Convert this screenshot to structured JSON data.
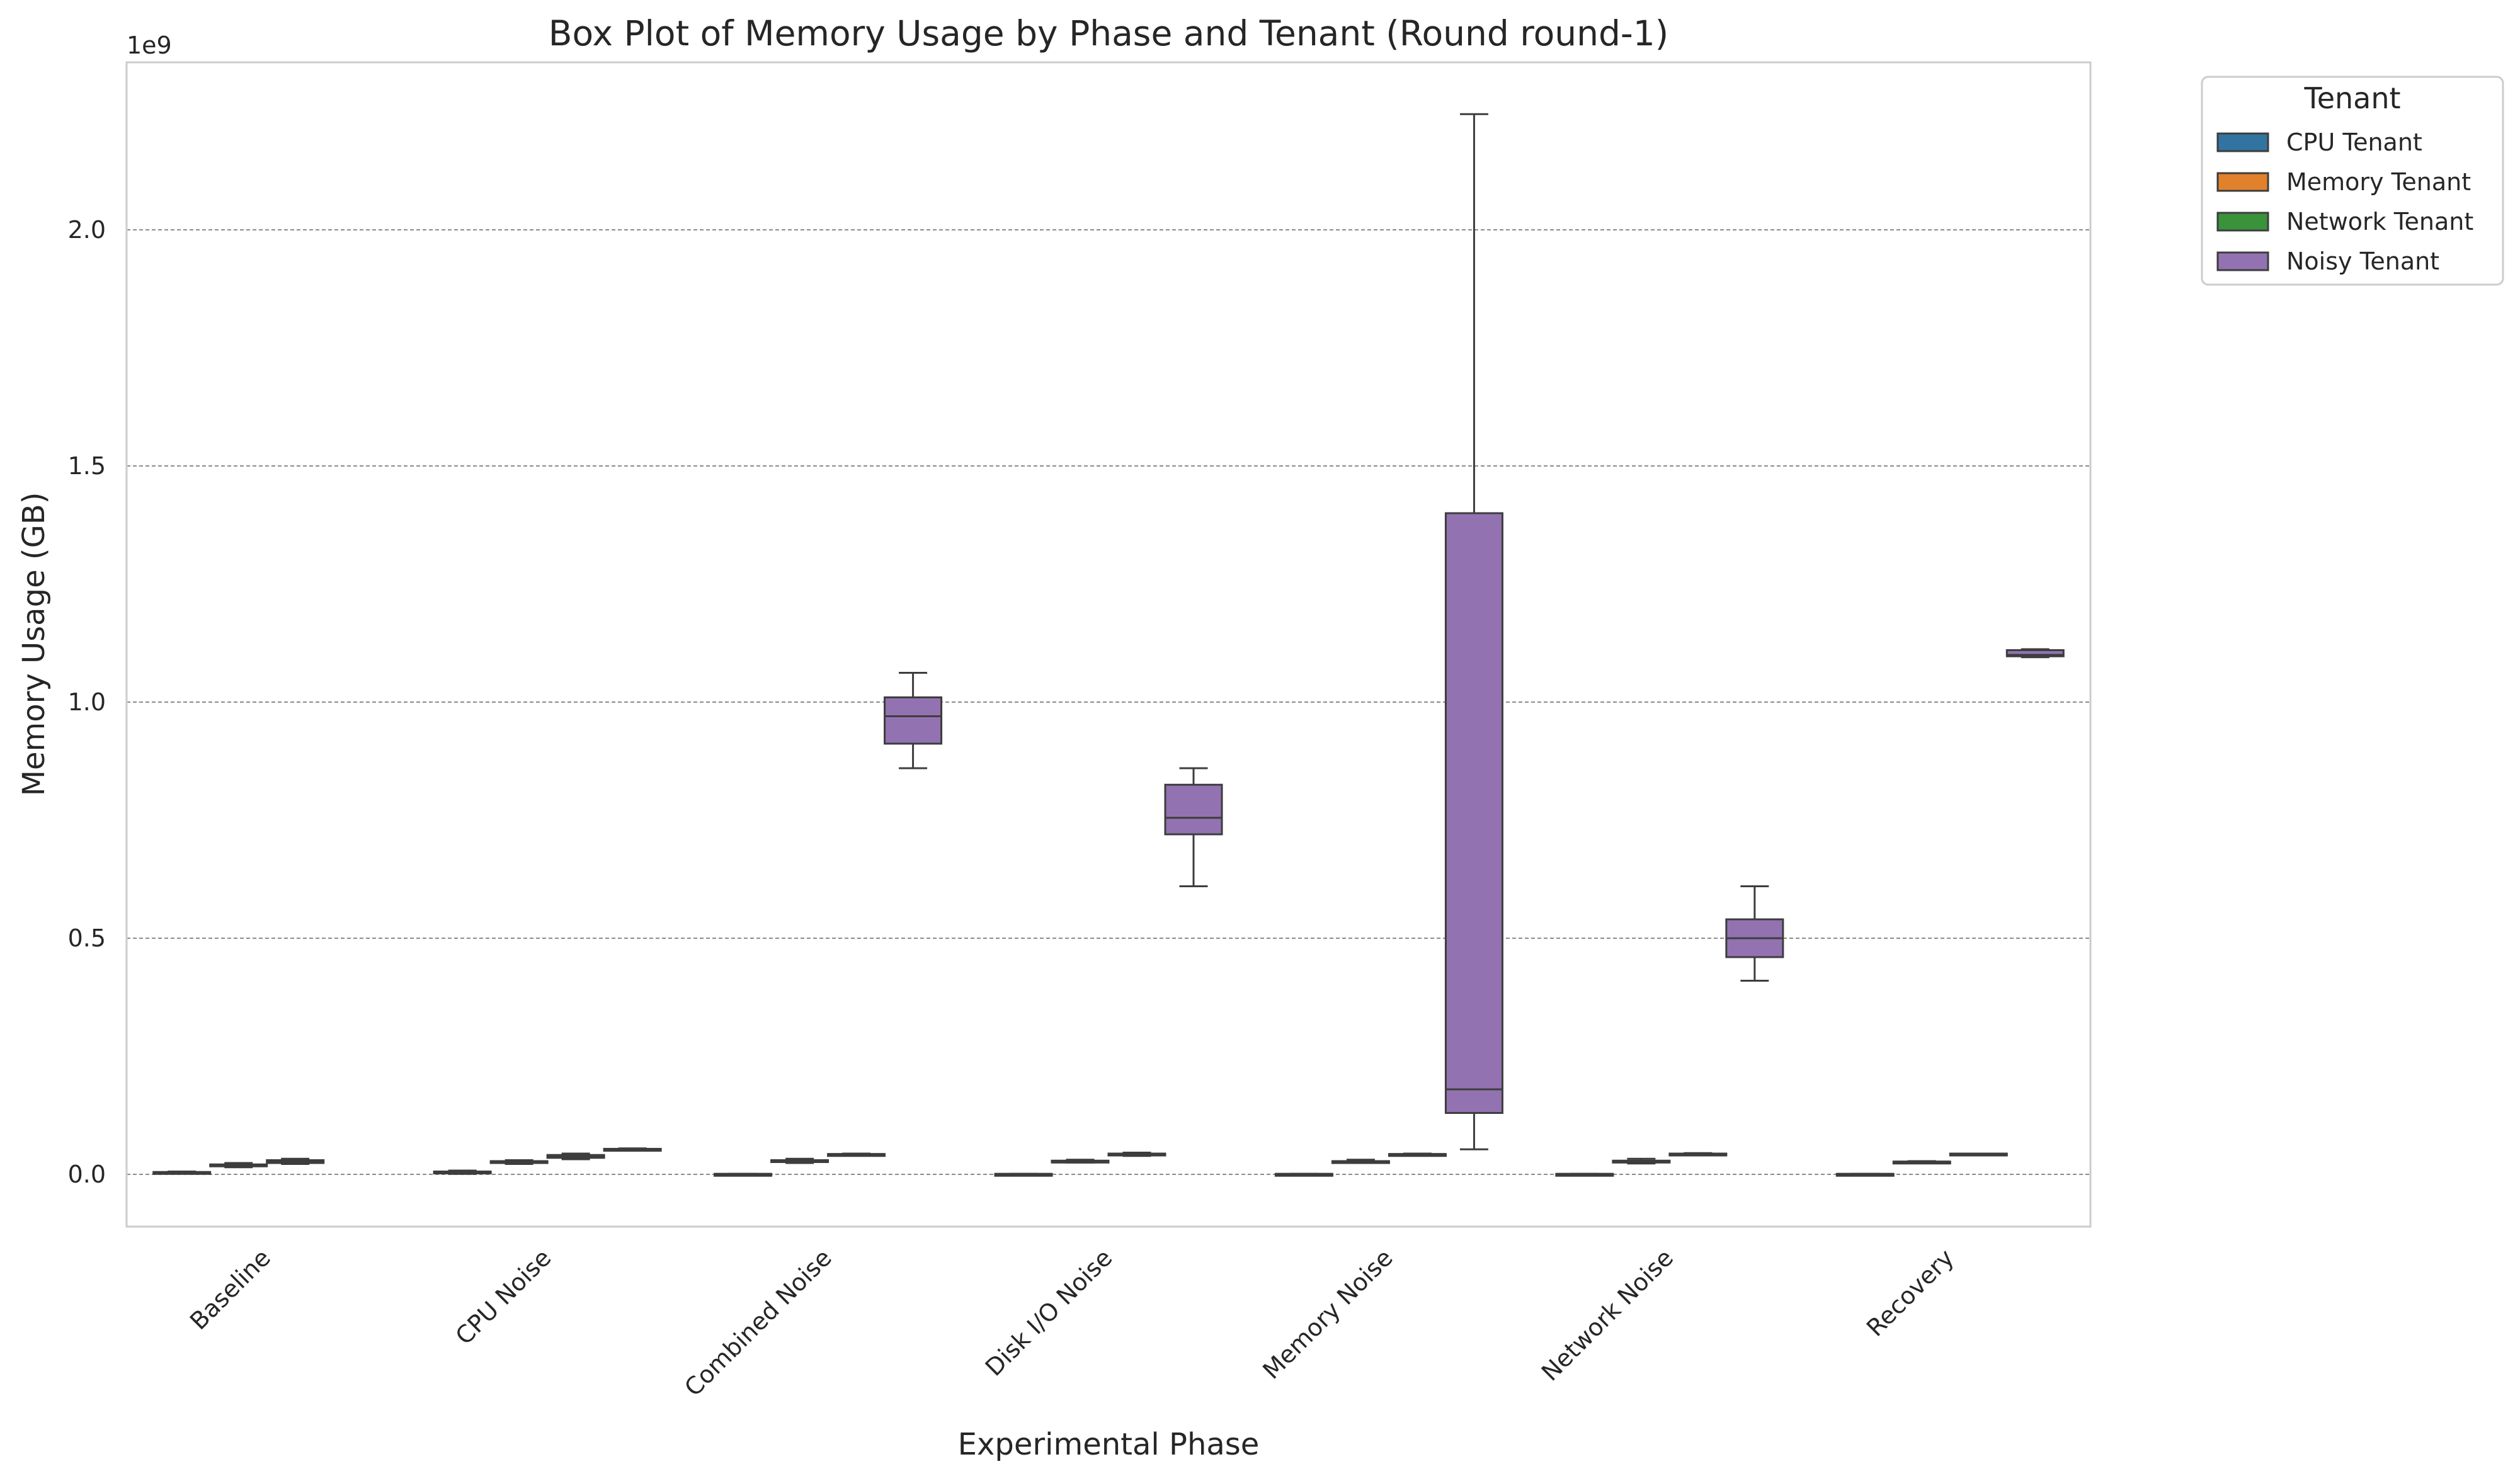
{
  "chart_data": {
    "type": "box",
    "title": "Box Plot of Memory Usage by Phase and Tenant (Round round-1)",
    "xlabel": "Experimental Phase",
    "ylabel": "Memory Usage (GB)",
    "y_offset_label": "1e9",
    "ylim": [
      -0.11,
      2.37
    ],
    "yticks": [
      0.0,
      0.5,
      1.0,
      1.5,
      2.0
    ],
    "ytick_labels": [
      "0.0",
      "0.5",
      "1.0",
      "1.5",
      "2.0"
    ],
    "grid": "horizontal dashed",
    "legend_title": "Tenant",
    "legend_position": "outside top-right",
    "categories": [
      "Baseline",
      "CPU Noise",
      "Combined Noise",
      "Disk I/O Noise",
      "Memory Noise",
      "Network Noise",
      "Recovery"
    ],
    "series": [
      {
        "name": "CPU Tenant",
        "color": "#3274a1",
        "boxes": [
          {
            "whislo": 0.002,
            "q1": 0.003,
            "med": 0.004,
            "q3": 0.005,
            "whishi": 0.006
          },
          {
            "whislo": 0.001,
            "q1": 0.002,
            "med": 0.004,
            "q3": 0.006,
            "whishi": 0.008
          },
          {
            "whislo": 0.001,
            "q1": 0.001,
            "med": 0.001,
            "q3": 0.001,
            "whishi": 0.001
          },
          {
            "whislo": 0.001,
            "q1": 0.001,
            "med": 0.001,
            "q3": 0.001,
            "whishi": 0.001
          },
          {
            "whislo": 0.001,
            "q1": 0.001,
            "med": 0.001,
            "q3": 0.001,
            "whishi": 0.001
          },
          {
            "whislo": 0.001,
            "q1": 0.001,
            "med": 0.001,
            "q3": 0.001,
            "whishi": 0.001
          },
          {
            "whislo": 0.001,
            "q1": 0.001,
            "med": 0.001,
            "q3": 0.001,
            "whishi": 0.001
          }
        ]
      },
      {
        "name": "Memory Tenant",
        "color": "#e1812c",
        "boxes": [
          {
            "whislo": 0.015,
            "q1": 0.017,
            "med": 0.019,
            "q3": 0.021,
            "whishi": 0.024
          },
          {
            "whislo": 0.022,
            "q1": 0.024,
            "med": 0.026,
            "q3": 0.028,
            "whishi": 0.03
          },
          {
            "whislo": 0.024,
            "q1": 0.026,
            "med": 0.028,
            "q3": 0.03,
            "whishi": 0.033
          },
          {
            "whislo": 0.025,
            "q1": 0.026,
            "med": 0.028,
            "q3": 0.029,
            "whishi": 0.031
          },
          {
            "whislo": 0.024,
            "q1": 0.026,
            "med": 0.027,
            "q3": 0.028,
            "whishi": 0.031
          },
          {
            "whislo": 0.023,
            "q1": 0.025,
            "med": 0.027,
            "q3": 0.029,
            "whishi": 0.033
          },
          {
            "whislo": 0.025,
            "q1": 0.026,
            "med": 0.027,
            "q3": 0.027,
            "whishi": 0.028
          }
        ]
      },
      {
        "name": "Network Tenant",
        "color": "#3a923a",
        "boxes": [
          {
            "whislo": 0.022,
            "q1": 0.024,
            "med": 0.027,
            "q3": 0.03,
            "whishi": 0.033
          },
          {
            "whislo": 0.032,
            "q1": 0.035,
            "med": 0.038,
            "q3": 0.041,
            "whishi": 0.044
          },
          {
            "whislo": 0.042,
            "q1": 0.042,
            "med": 0.043,
            "q3": 0.043,
            "whishi": 0.044
          },
          {
            "whislo": 0.039,
            "q1": 0.041,
            "med": 0.043,
            "q3": 0.044,
            "whishi": 0.046
          },
          {
            "whislo": 0.041,
            "q1": 0.042,
            "med": 0.043,
            "q3": 0.043,
            "whishi": 0.044
          },
          {
            "whislo": 0.042,
            "q1": 0.043,
            "med": 0.044,
            "q3": 0.044,
            "whishi": 0.045
          },
          {
            "whislo": 0.042,
            "q1": 0.043,
            "med": 0.043,
            "q3": 0.044,
            "whishi": 0.044
          }
        ]
      },
      {
        "name": "Noisy Tenant",
        "color": "#9372b2",
        "boxes": [
          null,
          {
            "whislo": 0.053,
            "q1": 0.053,
            "med": 0.054,
            "q3": 0.054,
            "whishi": 0.055
          },
          {
            "whislo": 0.86,
            "q1": 0.912,
            "med": 0.97,
            "q3": 1.01,
            "whishi": 1.062
          },
          {
            "whislo": 0.61,
            "q1": 0.72,
            "med": 0.755,
            "q3": 0.825,
            "whishi": 0.86
          },
          {
            "whislo": 0.053,
            "q1": 0.13,
            "med": 0.18,
            "q3": 1.4,
            "whishi": 2.245
          },
          {
            "whislo": 0.41,
            "q1": 0.46,
            "med": 0.5,
            "q3": 0.54,
            "whishi": 0.61
          },
          {
            "whislo": 1.095,
            "q1": 1.097,
            "med": 1.1,
            "q3": 1.11,
            "whishi": 1.112
          }
        ]
      }
    ]
  }
}
